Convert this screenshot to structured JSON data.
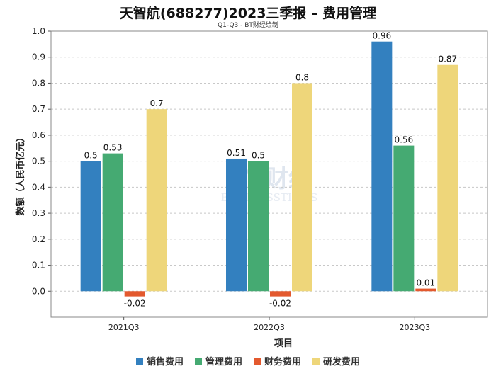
{
  "title": "天智航(688277)2023三季报 – 费用管理",
  "subtitle": "Q1-Q3 - BT财经绘制",
  "watermark": {
    "main": "BT财经",
    "sub": "BUSINESSTIMES"
  },
  "chart_data": {
    "type": "bar",
    "categories": [
      "2021Q3",
      "2022Q3",
      "2023Q3"
    ],
    "series": [
      {
        "name": "销售费用",
        "color": "#3380bf",
        "values": [
          0.5,
          0.51,
          0.96
        ],
        "labels": [
          "0.5",
          "0.51",
          "0.96"
        ]
      },
      {
        "name": "管理费用",
        "color": "#45aa72",
        "values": [
          0.53,
          0.5,
          0.56
        ],
        "labels": [
          "0.53",
          "0.5",
          "0.56"
        ]
      },
      {
        "name": "财务费用",
        "color": "#e3592e",
        "values": [
          -0.02,
          -0.02,
          0.01
        ],
        "labels": [
          "-0.02",
          "-0.02",
          "0.01"
        ]
      },
      {
        "name": "研发费用",
        "color": "#eed67a",
        "values": [
          0.7,
          0.8,
          0.87
        ],
        "labels": [
          "0.7",
          "0.8",
          "0.87"
        ]
      }
    ],
    "xlabel": "项目",
    "ylabel": "数额（人民币亿元）",
    "ylim": [
      -0.1,
      1.0
    ],
    "yticks": [
      "0.0",
      "0.1",
      "0.2",
      "0.3",
      "0.4",
      "0.5",
      "0.6",
      "0.7",
      "0.8",
      "0.9",
      "1.0"
    ],
    "grid": true,
    "legend_position": "bottom"
  }
}
